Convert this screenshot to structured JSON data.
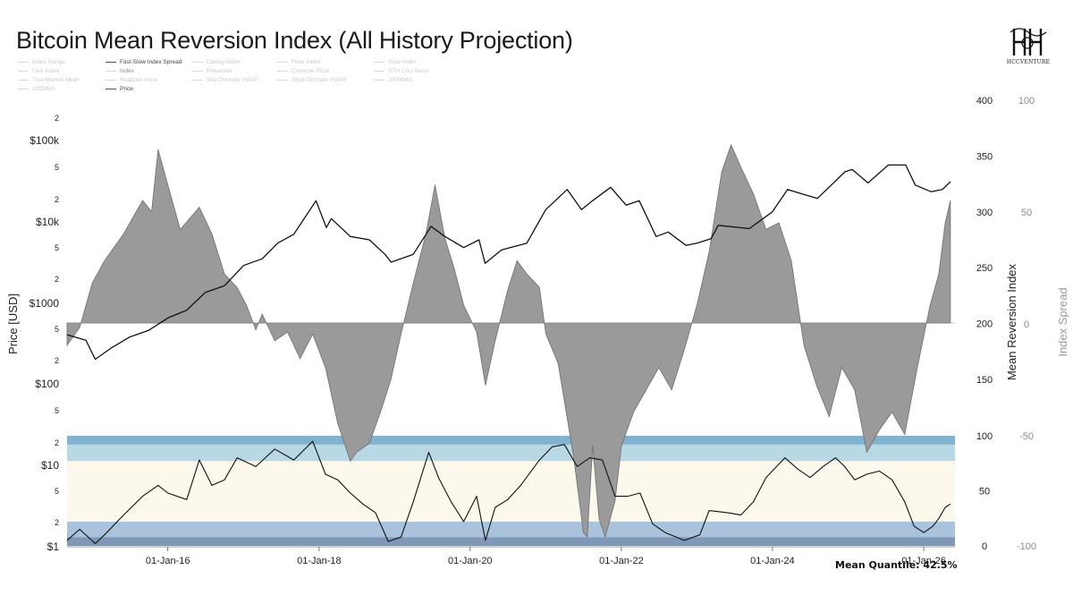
{
  "title": "Bitcoin Mean Reversion Index (All History Projection)",
  "brand": {
    "logo_text": "HCCVENTURE",
    "logo_icon": "hh-monogram-logo"
  },
  "legend": [
    {
      "label": "Index Range",
      "emphasis": "faint"
    },
    {
      "label": "Fast-Slow Index Spread",
      "emphasis": "strong"
    },
    {
      "label": "Ceiling Index",
      "emphasis": "faint"
    },
    {
      "label": "Floor Index",
      "emphasis": "faint"
    },
    {
      "label": "Slow Index",
      "emphasis": "faint"
    },
    {
      "label": "Fast Index",
      "emphasis": "faint"
    },
    {
      "label": "Index",
      "emphasis": "mid"
    },
    {
      "label": "Powerlaw",
      "emphasis": "faint"
    },
    {
      "label": "Cointime Price",
      "emphasis": "faint"
    },
    {
      "label": "STH Cost Basis",
      "emphasis": "faint"
    },
    {
      "label": "True Market Mean",
      "emphasis": "faint"
    },
    {
      "label": "Realized Price",
      "emphasis": "faint"
    },
    {
      "label": "90d-Onchain VWAP",
      "emphasis": "faint"
    },
    {
      "label": "365d-Onchain VWAP",
      "emphasis": "faint"
    },
    {
      "label": "200WMA",
      "emphasis": "faint"
    },
    {
      "label": "200DMA",
      "emphasis": "faint"
    },
    {
      "label": "Price",
      "emphasis": "strong"
    }
  ],
  "footer": "Mean Quantile: 42.5%",
  "colors": {
    "price_line": "#111111",
    "spread_fill": "#9a9a9a",
    "spread_stroke": "#6e6e6e",
    "band_top_outer": "#7fb3cf",
    "band_top_inner": "#b9d8e6",
    "band_mid": "#fdf8ec",
    "band_low_inner": "#a9c3dc",
    "band_low_outer": "#7f98b8"
  },
  "chart_data": {
    "type": "line",
    "xlabel": "",
    "x_range": [
      "2014-09-01",
      "2026-06-01"
    ],
    "x_ticks": [
      "01-Jan-16",
      "01-Jan-18",
      "01-Jan-20",
      "01-Jan-22",
      "01-Jan-24",
      "01-Jan-26"
    ],
    "left_axis": {
      "label": "Price [USD]",
      "scale": "log",
      "range": [
        1,
        400000
      ],
      "tick_labels": [
        "$1",
        "2",
        "5",
        "$10",
        "2",
        "5",
        "$100",
        "2",
        "5",
        "$1000",
        "2",
        "5",
        "$10k",
        "2",
        "5",
        "$100k",
        "2"
      ]
    },
    "right_axis_1": {
      "label": "Mean Reversion Index",
      "upper_ticks": [
        "400",
        "350",
        "300",
        "250",
        "200",
        "150"
      ],
      "lower_ticks": [
        "100",
        "50",
        "0"
      ]
    },
    "right_axis_2": {
      "label": "Index Spread",
      "ticks": [
        "100",
        "50",
        "0",
        "-50",
        "-100"
      ]
    },
    "series": [
      {
        "key": "price",
        "legend_label": "Price",
        "points": [
          [
            "2014-09-01",
            190
          ],
          [
            "2014-12-01",
            185
          ],
          [
            "2015-01-15",
            168
          ],
          [
            "2015-04-01",
            178
          ],
          [
            "2015-07-01",
            188
          ],
          [
            "2015-10-01",
            194
          ],
          [
            "2016-01-01",
            205
          ],
          [
            "2016-04-01",
            212
          ],
          [
            "2016-07-01",
            228
          ],
          [
            "2016-10-01",
            234
          ],
          [
            "2017-01-01",
            252
          ],
          [
            "2017-04-01",
            258
          ],
          [
            "2017-06-15",
            272
          ],
          [
            "2017-09-01",
            280
          ],
          [
            "2017-12-17",
            310
          ],
          [
            "2018-02-05",
            286
          ],
          [
            "2018-03-01",
            294
          ],
          [
            "2018-06-01",
            278
          ],
          [
            "2018-09-01",
            275
          ],
          [
            "2018-11-15",
            262
          ],
          [
            "2018-12-15",
            255
          ],
          [
            "2019-04-01",
            262
          ],
          [
            "2019-06-26",
            287
          ],
          [
            "2019-09-01",
            278
          ],
          [
            "2019-12-01",
            268
          ],
          [
            "2020-02-13",
            275
          ],
          [
            "2020-03-13",
            254
          ],
          [
            "2020-06-01",
            266
          ],
          [
            "2020-10-01",
            272
          ],
          [
            "2020-12-31",
            302
          ],
          [
            "2021-04-14",
            320
          ],
          [
            "2021-06-22",
            302
          ],
          [
            "2021-08-15",
            310
          ],
          [
            "2021-11-10",
            322
          ],
          [
            "2022-01-24",
            306
          ],
          [
            "2022-03-28",
            310
          ],
          [
            "2022-06-18",
            278
          ],
          [
            "2022-08-15",
            282
          ],
          [
            "2022-11-09",
            270
          ],
          [
            "2023-01-01",
            272
          ],
          [
            "2023-03-10",
            276
          ],
          [
            "2023-04-14",
            288
          ],
          [
            "2023-09-11",
            285
          ],
          [
            "2023-12-31",
            300
          ],
          [
            "2024-03-14",
            320
          ],
          [
            "2024-08-05",
            312
          ],
          [
            "2024-12-17",
            336
          ],
          [
            "2025-01-20",
            338
          ],
          [
            "2025-04-07",
            326
          ],
          [
            "2025-07-14",
            342
          ],
          [
            "2025-10-06",
            342
          ],
          [
            "2025-11-21",
            324
          ],
          [
            "2026-02-06",
            318
          ],
          [
            "2026-04-01",
            320
          ],
          [
            "2026-05-10",
            327
          ]
        ]
      },
      {
        "key": "index_spread",
        "legend_label": "Fast-Slow Index Spread",
        "points": [
          [
            "2014-09-01",
            -10
          ],
          [
            "2014-11-01",
            -2
          ],
          [
            "2015-01-01",
            18
          ],
          [
            "2015-03-01",
            28
          ],
          [
            "2015-06-01",
            40
          ],
          [
            "2015-09-01",
            55
          ],
          [
            "2015-10-15",
            50
          ],
          [
            "2015-11-15",
            78
          ],
          [
            "2016-01-01",
            62
          ],
          [
            "2016-03-01",
            42
          ],
          [
            "2016-06-01",
            52
          ],
          [
            "2016-08-01",
            40
          ],
          [
            "2016-10-01",
            22
          ],
          [
            "2016-12-01",
            16
          ],
          [
            "2017-01-15",
            8
          ],
          [
            "2017-03-01",
            -3
          ],
          [
            "2017-04-01",
            4
          ],
          [
            "2017-06-01",
            -8
          ],
          [
            "2017-08-01",
            -4
          ],
          [
            "2017-10-01",
            -16
          ],
          [
            "2017-12-01",
            -5
          ],
          [
            "2018-02-01",
            -20
          ],
          [
            "2018-04-01",
            -45
          ],
          [
            "2018-06-01",
            -62
          ],
          [
            "2018-07-01",
            -58
          ],
          [
            "2018-09-01",
            -54
          ],
          [
            "2018-11-01",
            -38
          ],
          [
            "2018-12-15",
            -25
          ],
          [
            "2019-02-01",
            -5
          ],
          [
            "2019-04-01",
            18
          ],
          [
            "2019-06-01",
            40
          ],
          [
            "2019-07-15",
            62
          ],
          [
            "2019-09-01",
            38
          ],
          [
            "2019-10-15",
            25
          ],
          [
            "2019-12-01",
            8
          ],
          [
            "2020-02-01",
            -4
          ],
          [
            "2020-03-15",
            -28
          ],
          [
            "2020-05-01",
            -8
          ],
          [
            "2020-07-01",
            15
          ],
          [
            "2020-08-15",
            28
          ],
          [
            "2020-10-01",
            22
          ],
          [
            "2020-12-01",
            16
          ],
          [
            "2021-01-01",
            -5
          ],
          [
            "2021-03-01",
            -18
          ],
          [
            "2021-05-15",
            -60
          ],
          [
            "2021-07-01",
            -94
          ],
          [
            "2021-07-20",
            -96
          ],
          [
            "2021-08-15",
            -55
          ],
          [
            "2021-09-15",
            -88
          ],
          [
            "2021-10-15",
            -96
          ],
          [
            "2021-12-01",
            -80
          ],
          [
            "2022-01-01",
            -55
          ],
          [
            "2022-03-01",
            -40
          ],
          [
            "2022-05-01",
            -30
          ],
          [
            "2022-07-01",
            -20
          ],
          [
            "2022-09-01",
            -30
          ],
          [
            "2022-11-01",
            -12
          ],
          [
            "2023-01-01",
            8
          ],
          [
            "2023-03-01",
            32
          ],
          [
            "2023-05-01",
            68
          ],
          [
            "2023-06-15",
            80
          ],
          [
            "2023-08-01",
            70
          ],
          [
            "2023-10-01",
            58
          ],
          [
            "2023-12-01",
            42
          ],
          [
            "2024-02-01",
            45
          ],
          [
            "2024-04-01",
            28
          ],
          [
            "2024-06-01",
            -10
          ],
          [
            "2024-08-01",
            -28
          ],
          [
            "2024-10-01",
            -42
          ],
          [
            "2024-12-01",
            -20
          ],
          [
            "2025-02-01",
            -30
          ],
          [
            "2025-04-01",
            -58
          ],
          [
            "2025-06-01",
            -48
          ],
          [
            "2025-08-01",
            -40
          ],
          [
            "2025-10-01",
            -50
          ],
          [
            "2025-12-01",
            -20
          ],
          [
            "2026-02-01",
            8
          ],
          [
            "2026-03-15",
            22
          ],
          [
            "2026-04-15",
            45
          ],
          [
            "2026-05-10",
            55
          ]
        ]
      },
      {
        "key": "mean_reversion_index",
        "legend_label": "Index",
        "points": [
          [
            "2014-09-01",
            5
          ],
          [
            "2014-11-01",
            15
          ],
          [
            "2015-01-15",
            2
          ],
          [
            "2015-03-01",
            10
          ],
          [
            "2015-06-01",
            28
          ],
          [
            "2015-09-01",
            45
          ],
          [
            "2015-11-15",
            55
          ],
          [
            "2016-01-01",
            48
          ],
          [
            "2016-04-01",
            42
          ],
          [
            "2016-06-01",
            78
          ],
          [
            "2016-08-01",
            55
          ],
          [
            "2016-10-01",
            60
          ],
          [
            "2016-12-01",
            80
          ],
          [
            "2017-03-01",
            72
          ],
          [
            "2017-06-01",
            88
          ],
          [
            "2017-09-01",
            78
          ],
          [
            "2017-12-01",
            95
          ],
          [
            "2018-02-01",
            65
          ],
          [
            "2018-04-01",
            60
          ],
          [
            "2018-06-01",
            48
          ],
          [
            "2018-08-01",
            38
          ],
          [
            "2018-10-01",
            30
          ],
          [
            "2018-12-01",
            4
          ],
          [
            "2019-02-01",
            8
          ],
          [
            "2019-04-01",
            40
          ],
          [
            "2019-06-15",
            85
          ],
          [
            "2019-08-01",
            62
          ],
          [
            "2019-10-01",
            40
          ],
          [
            "2019-12-01",
            22
          ],
          [
            "2020-02-01",
            45
          ],
          [
            "2020-03-15",
            5
          ],
          [
            "2020-05-01",
            35
          ],
          [
            "2020-07-01",
            42
          ],
          [
            "2020-09-01",
            55
          ],
          [
            "2020-12-01",
            78
          ],
          [
            "2021-02-01",
            90
          ],
          [
            "2021-04-01",
            92
          ],
          [
            "2021-06-01",
            72
          ],
          [
            "2021-08-01",
            80
          ],
          [
            "2021-10-01",
            78
          ],
          [
            "2021-12-01",
            45
          ],
          [
            "2022-02-01",
            45
          ],
          [
            "2022-04-01",
            48
          ],
          [
            "2022-06-01",
            20
          ],
          [
            "2022-08-01",
            12
          ],
          [
            "2022-11-01",
            5
          ],
          [
            "2023-01-15",
            10
          ],
          [
            "2023-03-01",
            32
          ],
          [
            "2023-06-01",
            30
          ],
          [
            "2023-08-01",
            28
          ],
          [
            "2023-10-01",
            40
          ],
          [
            "2023-12-01",
            62
          ],
          [
            "2024-03-01",
            80
          ],
          [
            "2024-05-01",
            70
          ],
          [
            "2024-07-01",
            62
          ],
          [
            "2024-09-01",
            72
          ],
          [
            "2024-11-01",
            80
          ],
          [
            "2024-12-15",
            72
          ],
          [
            "2025-02-01",
            60
          ],
          [
            "2025-04-01",
            65
          ],
          [
            "2025-06-01",
            68
          ],
          [
            "2025-08-01",
            60
          ],
          [
            "2025-10-01",
            40
          ],
          [
            "2025-11-15",
            18
          ],
          [
            "2026-01-01",
            12
          ],
          [
            "2026-02-15",
            18
          ],
          [
            "2026-03-15",
            25
          ],
          [
            "2026-04-15",
            35
          ],
          [
            "2026-05-10",
            38
          ]
        ]
      }
    ],
    "quantile_bands": [
      {
        "from": 0,
        "to": 8,
        "color": "#7f98b8"
      },
      {
        "from": 8,
        "to": 22,
        "color": "#a9c3dc"
      },
      {
        "from": 22,
        "to": 77,
        "color": "#fdf8ec"
      },
      {
        "from": 77,
        "to": 92,
        "color": "#b9d8e6"
      },
      {
        "from": 92,
        "to": 100,
        "color": "#7fb3cf"
      }
    ]
  }
}
